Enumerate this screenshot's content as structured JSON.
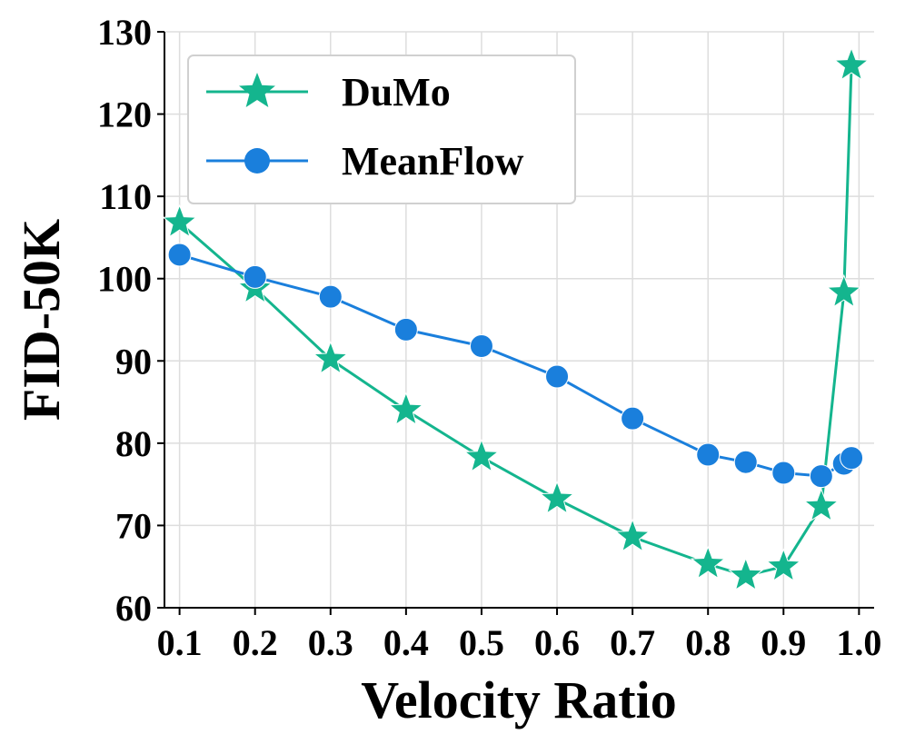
{
  "chart_data": {
    "type": "line",
    "title": "",
    "xlabel": "Velocity Ratio",
    "ylabel": "FID-50K",
    "xlim": [
      0.08,
      1.02
    ],
    "ylim": [
      60,
      130
    ],
    "xticks": [
      "0.1",
      "0.2",
      "0.3",
      "0.4",
      "0.5",
      "0.6",
      "0.7",
      "0.8",
      "0.9",
      "1.0"
    ],
    "yticks": [
      "60",
      "70",
      "80",
      "90",
      "100",
      "110",
      "120",
      "130"
    ],
    "grid": true,
    "legend_position": "top-left",
    "series": [
      {
        "name": "DuMo",
        "color": "#14b58e",
        "marker": "star",
        "x": [
          0.1,
          0.2,
          0.3,
          0.4,
          0.5,
          0.6,
          0.7,
          0.8,
          0.85,
          0.9,
          0.95,
          0.98,
          0.99
        ],
        "y": [
          106.8,
          98.8,
          90.2,
          84.0,
          78.3,
          73.2,
          68.6,
          65.3,
          63.9,
          65.0,
          72.3,
          98.3,
          125.9
        ]
      },
      {
        "name": "MeanFlow",
        "color": "#1a7fdc",
        "marker": "circle",
        "x": [
          0.1,
          0.2,
          0.3,
          0.4,
          0.5,
          0.6,
          0.7,
          0.8,
          0.85,
          0.9,
          0.95,
          0.98,
          0.99
        ],
        "y": [
          102.9,
          100.2,
          97.8,
          93.8,
          91.8,
          88.1,
          83.0,
          78.6,
          77.7,
          76.4,
          76.0,
          77.5,
          78.2
        ]
      }
    ]
  }
}
